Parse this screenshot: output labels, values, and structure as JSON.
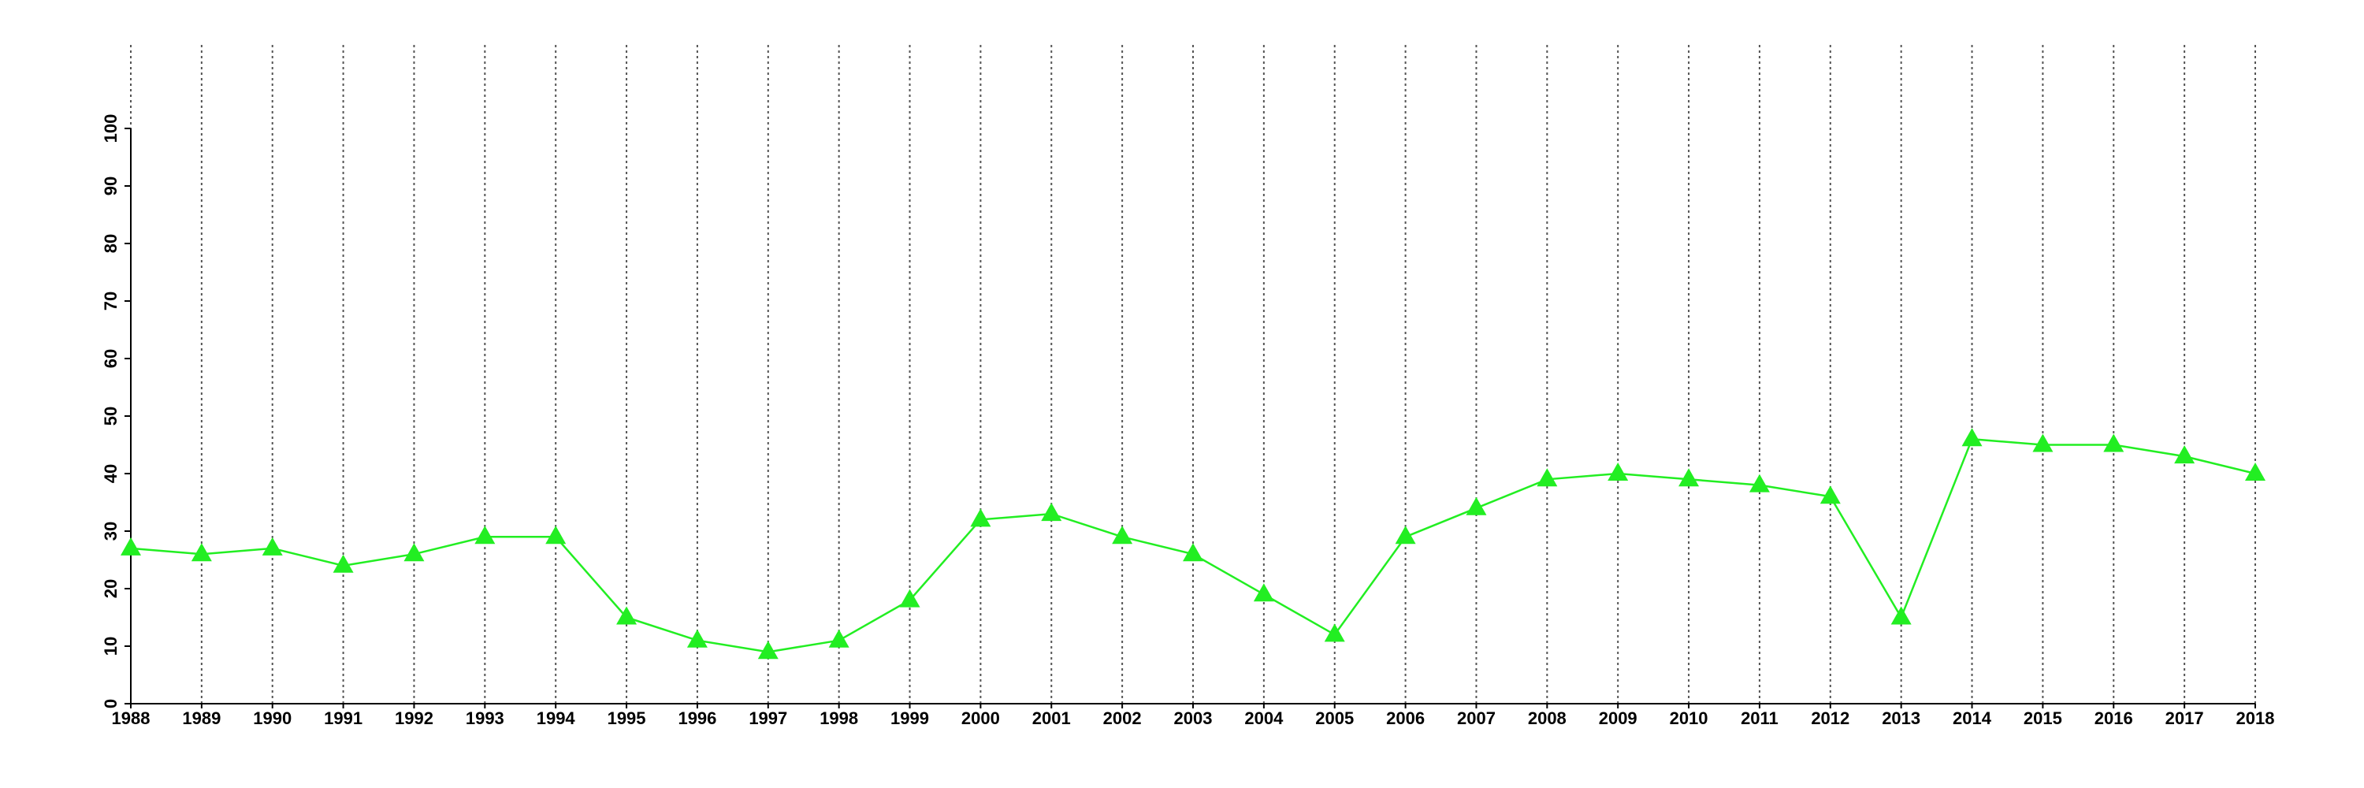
{
  "chart_data": {
    "type": "line",
    "x": [
      1988,
      1989,
      1990,
      1991,
      1992,
      1993,
      1994,
      1995,
      1996,
      1997,
      1998,
      1999,
      2000,
      2001,
      2002,
      2003,
      2004,
      2005,
      2006,
      2007,
      2008,
      2009,
      2010,
      2011,
      2012,
      2013,
      2014,
      2015,
      2016,
      2017,
      2018
    ],
    "series": [
      {
        "color": "#22ee22",
        "values": [
          27,
          26,
          27,
          24,
          26,
          29,
          29,
          15,
          11,
          9,
          11,
          18,
          32,
          33,
          29,
          26,
          19,
          12,
          29,
          34,
          39,
          40,
          39,
          38,
          36,
          15,
          46,
          45,
          45,
          43,
          40
        ]
      }
    ],
    "xlim": [
      1988,
      2018
    ],
    "ylim": [
      0,
      100
    ],
    "yticks": [
      0,
      10,
      20,
      30,
      40,
      50,
      60,
      70,
      80,
      90,
      100
    ],
    "grid": true
  }
}
